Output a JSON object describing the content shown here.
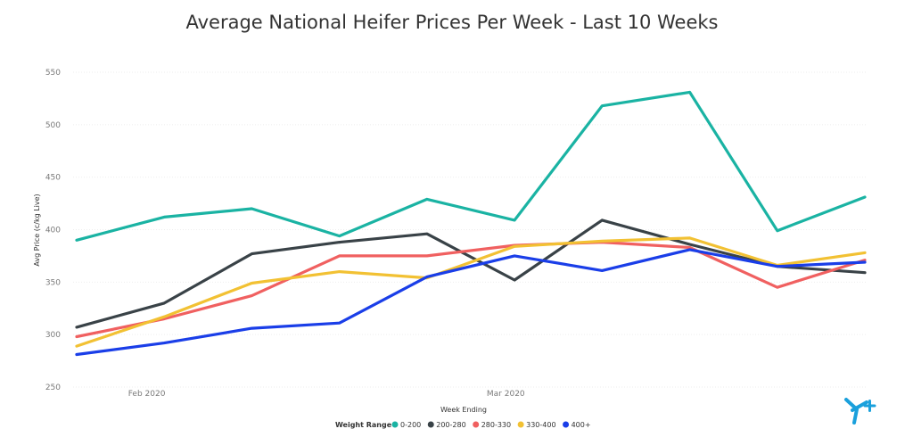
{
  "chart_data": {
    "type": "line",
    "title": "Average National Heifer Prices Per Week - Last 10 Weeks",
    "xlabel": "Week Ending",
    "ylabel": "Avg Price (c/kg Live)",
    "ylim": [
      250,
      550
    ],
    "yticks": [
      250,
      300,
      350,
      400,
      450,
      500,
      550
    ],
    "x": [
      1,
      2,
      3,
      4,
      5,
      6,
      7,
      8,
      9,
      10
    ],
    "xtick_labels": [
      {
        "label": "Feb 2020",
        "at": 1.8
      },
      {
        "label": "Mar 2020",
        "at": 5.9
      }
    ],
    "grid": true,
    "legend": {
      "title": "Weight Range",
      "placement": "bottom"
    },
    "series": [
      {
        "name": "0-200",
        "color": "#1ab3a3",
        "values": [
          390,
          412,
          420,
          394,
          429,
          409,
          518,
          531,
          399,
          431
        ]
      },
      {
        "name": "200-280",
        "color": "#394247",
        "values": [
          307,
          330,
          377,
          388,
          396,
          352,
          409,
          386,
          365,
          359
        ]
      },
      {
        "name": "280-330",
        "color": "#f06060",
        "values": [
          298,
          315,
          337,
          375,
          375,
          385,
          388,
          383,
          345,
          371
        ]
      },
      {
        "name": "330-400",
        "color": "#f2c133",
        "values": [
          289,
          317,
          349,
          360,
          354,
          384,
          389,
          392,
          366,
          378
        ]
      },
      {
        "name": "400+",
        "color": "#1a3ee8",
        "values": [
          281,
          292,
          306,
          311,
          355,
          375,
          361,
          381,
          365,
          369
        ]
      }
    ]
  },
  "logo": {
    "name": "brand-logo-icon",
    "color": "#1aa0dc"
  }
}
